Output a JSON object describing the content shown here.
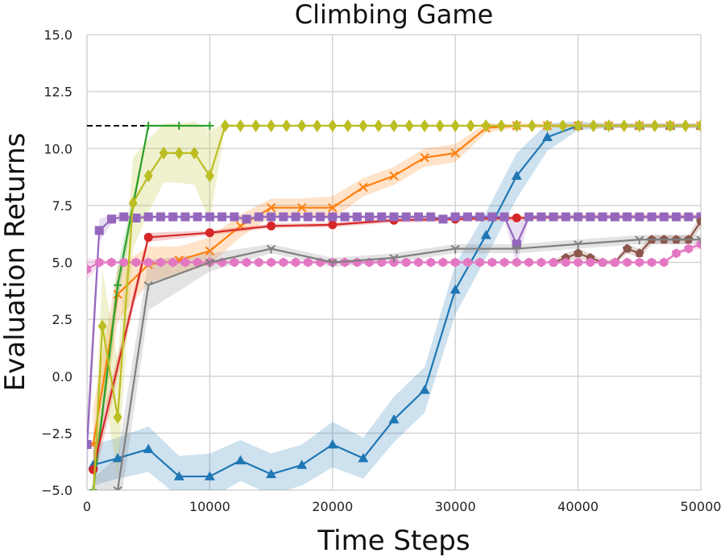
{
  "chart_data": {
    "type": "line",
    "title": "Climbing Game",
    "xlabel": "Time Steps",
    "ylabel": "Evaluation Returns",
    "xlim": [
      0,
      50000
    ],
    "ylim": [
      -5.0,
      15.0
    ],
    "x_ticks": [
      0,
      10000,
      20000,
      30000,
      40000,
      50000
    ],
    "x_tick_labels": [
      "0",
      "10000",
      "20000",
      "30000",
      "40000",
      "50000"
    ],
    "y_ticks": [
      -5.0,
      -2.5,
      0.0,
      2.5,
      5.0,
      7.5,
      10.0,
      12.5,
      15.0
    ],
    "y_tick_labels": [
      "−5.0",
      "−2.5",
      "0.0",
      "2.5",
      "5.0",
      "7.5",
      "10.0",
      "12.5",
      "15.0"
    ],
    "grid": true,
    "legend": "none",
    "reference_line": {
      "y": 11,
      "x_range": [
        0,
        5000
      ],
      "style": "dashed",
      "color": "#000000"
    },
    "series": [
      {
        "color": "#1f77b4",
        "marker": "triangle",
        "x": [
          500,
          2500,
          5000,
          7500,
          10000,
          12500,
          15000,
          17500,
          20000,
          22500,
          25000,
          27500,
          30000,
          32500,
          35000,
          37500,
          40000,
          42500,
          45000,
          47500,
          50000
        ],
        "y": [
          -3.9,
          -3.6,
          -3.2,
          -4.4,
          -4.4,
          -3.7,
          -4.3,
          -3.9,
          -3.0,
          -3.6,
          -1.9,
          -0.6,
          3.8,
          6.2,
          8.8,
          10.5,
          11.0,
          11.0,
          11.0,
          11.0,
          11.0
        ],
        "band": [
          0.9,
          0.9,
          1.0,
          0.9,
          1.0,
          0.9,
          0.9,
          0.9,
          1.0,
          0.9,
          1.0,
          1.0,
          1.1,
          1.0,
          1.0,
          0.6,
          0.2,
          0.1,
          0.1,
          0.1,
          0.1
        ]
      },
      {
        "color": "#ff7f0e",
        "marker": "x",
        "x": [
          500,
          2500,
          5000,
          7500,
          10000,
          12500,
          15000,
          17500,
          20000,
          22500,
          25000,
          27500,
          30000,
          32500,
          35000,
          37500,
          40000,
          42500,
          45000,
          47500,
          50000
        ],
        "y": [
          -3.0,
          3.6,
          4.9,
          5.1,
          5.5,
          6.6,
          7.4,
          7.4,
          7.4,
          8.3,
          8.8,
          9.6,
          9.8,
          10.9,
          11.0,
          11.0,
          11.0,
          11.0,
          11.0,
          11.0,
          11.0
        ],
        "band": [
          1.6,
          1.2,
          0.8,
          0.6,
          0.6,
          0.5,
          0.4,
          0.4,
          0.5,
          0.4,
          0.4,
          0.4,
          0.4,
          0.2,
          0.1,
          0.1,
          0.1,
          0.1,
          0.1,
          0.1,
          0.1
        ]
      },
      {
        "color": "#2ca02c",
        "marker": "plus",
        "x": [
          500,
          2500,
          5000,
          7500,
          10000
        ],
        "y": [
          -5.0,
          4.0,
          11.0,
          11.0,
          11.0
        ],
        "band": [
          0.5,
          0.8,
          0.0,
          0.0,
          0.0
        ]
      },
      {
        "color": "#d62728",
        "marker": "circle",
        "x": [
          500,
          5000,
          10000,
          15000,
          20000,
          25000,
          30000,
          35000,
          40000,
          45000,
          50000
        ],
        "y": [
          -4.1,
          6.1,
          6.3,
          6.6,
          6.65,
          6.85,
          6.9,
          6.95,
          7.0,
          7.0,
          7.0
        ],
        "band": [
          0.7,
          0.2,
          0.1,
          0.1,
          0.1,
          0.1,
          0.1,
          0.1,
          0.1,
          0.1,
          0.1
        ]
      },
      {
        "color": "#9467bd",
        "marker": "square",
        "x": [
          0,
          1000,
          2000,
          3000,
          4000,
          5000,
          6000,
          7000,
          8000,
          9000,
          10000,
          11000,
          12000,
          13000,
          14000,
          15000,
          16000,
          17000,
          18000,
          19000,
          20000,
          21000,
          22000,
          23000,
          24000,
          25000,
          26000,
          27000,
          28000,
          29000,
          30000,
          31000,
          32000,
          33000,
          34000,
          35000,
          36000,
          37000,
          38000,
          39000,
          40000,
          41000,
          42000,
          43000,
          44000,
          45000,
          46000,
          47000,
          48000,
          49000,
          50000
        ],
        "y": [
          -3.0,
          6.4,
          6.9,
          7.0,
          6.95,
          7.0,
          7.0,
          7.0,
          7.0,
          7.0,
          7.0,
          7.0,
          7.0,
          6.9,
          7.0,
          7.0,
          7.0,
          7.0,
          7.0,
          7.0,
          7.0,
          7.0,
          7.0,
          7.0,
          7.0,
          7.0,
          7.0,
          7.0,
          7.0,
          6.9,
          7.0,
          7.0,
          7.0,
          7.0,
          7.0,
          5.8,
          7.0,
          7.0,
          7.0,
          7.0,
          7.0,
          7.0,
          7.0,
          7.0,
          7.0,
          7.0,
          7.0,
          7.0,
          7.0,
          7.0,
          7.0
        ],
        "band": [
          1.5,
          0.5,
          0.2,
          0.1,
          0.1,
          0.1,
          0.1,
          0.1,
          0.1,
          0.1,
          0.1,
          0.1,
          0.1,
          0.1,
          0.1,
          0.1,
          0.1,
          0.1,
          0.1,
          0.1,
          0.1,
          0.1,
          0.1,
          0.1,
          0.1,
          0.1,
          0.1,
          0.1,
          0.1,
          0.1,
          0.1,
          0.1,
          0.1,
          0.1,
          0.1,
          0.9,
          0.1,
          0.1,
          0.1,
          0.1,
          0.1,
          0.1,
          0.1,
          0.1,
          0.1,
          0.1,
          0.1,
          0.1,
          0.1,
          0.1,
          0.1
        ]
      },
      {
        "color": "#8c564b",
        "marker": "pentagon",
        "x": [
          38000,
          39000,
          40000,
          41000,
          42000,
          43000,
          44000,
          45000,
          46000,
          47000,
          48000,
          49000,
          50000
        ],
        "y": [
          5.0,
          5.2,
          5.4,
          5.2,
          5.0,
          5.0,
          5.6,
          5.4,
          6.0,
          6.0,
          6.0,
          6.0,
          6.8
        ],
        "band": [
          0.1,
          0.2,
          0.2,
          0.2,
          0.1,
          0.1,
          0.2,
          0.2,
          0.2,
          0.2,
          0.2,
          0.2,
          0.3
        ]
      },
      {
        "color": "#e377c2",
        "marker": "hexagon",
        "x": [
          0,
          1000,
          2000,
          3000,
          4000,
          5000,
          6000,
          7000,
          8000,
          9000,
          10000,
          11000,
          12000,
          13000,
          14000,
          15000,
          16000,
          17000,
          18000,
          19000,
          20000,
          21000,
          22000,
          23000,
          24000,
          25000,
          26000,
          27000,
          28000,
          29000,
          30000,
          31000,
          32000,
          33000,
          34000,
          35000,
          36000,
          37000,
          38000,
          39000,
          40000,
          41000,
          42000,
          43000,
          44000,
          45000,
          46000,
          47000,
          48000,
          49000,
          50000
        ],
        "y": [
          4.7,
          5.0,
          5.0,
          5.0,
          5.0,
          5.0,
          5.0,
          5.0,
          5.0,
          5.0,
          5.0,
          5.0,
          5.0,
          5.0,
          5.0,
          5.0,
          5.0,
          5.0,
          5.0,
          5.0,
          5.0,
          5.0,
          5.0,
          5.0,
          5.0,
          5.0,
          5.0,
          5.0,
          5.0,
          5.0,
          5.0,
          5.0,
          5.0,
          5.0,
          5.0,
          5.0,
          5.0,
          5.0,
          5.0,
          5.0,
          5.0,
          5.0,
          5.0,
          5.0,
          5.0,
          5.0,
          5.0,
          5.0,
          5.4,
          5.6,
          5.8
        ],
        "band": [
          0.5,
          0.1,
          0.05,
          0.05,
          0.05,
          0.05,
          0.05,
          0.05,
          0.05,
          0.05,
          0.05,
          0.05,
          0.05,
          0.05,
          0.05,
          0.05,
          0.05,
          0.05,
          0.05,
          0.05,
          0.05,
          0.05,
          0.05,
          0.05,
          0.05,
          0.05,
          0.05,
          0.05,
          0.05,
          0.05,
          0.05,
          0.05,
          0.05,
          0.05,
          0.05,
          0.05,
          0.05,
          0.05,
          0.05,
          0.05,
          0.05,
          0.05,
          0.05,
          0.05,
          0.05,
          0.05,
          0.05,
          0.05,
          0.1,
          0.1,
          0.2
        ]
      },
      {
        "color": "#7f7f7f",
        "marker": "tri_down",
        "x": [
          500,
          2500,
          5000,
          10000,
          15000,
          20000,
          25000,
          30000,
          35000,
          40000,
          45000,
          50000
        ],
        "y": [
          -6.0,
          -5.0,
          4.0,
          5.0,
          5.6,
          5.0,
          5.2,
          5.6,
          5.6,
          5.8,
          6.0,
          6.0
        ],
        "band": [
          1.5,
          1.5,
          1.1,
          0.4,
          0.2,
          0.2,
          0.2,
          0.2,
          0.2,
          0.2,
          0.2,
          0.2
        ]
      },
      {
        "color": "#bcbd22",
        "marker": "diamond",
        "x": [
          500,
          1250,
          2500,
          3750,
          5000,
          6250,
          7500,
          8750,
          10000,
          11250,
          12500,
          13750,
          15000,
          16250,
          17500,
          18750,
          20000,
          21250,
          22500,
          23750,
          25000,
          26250,
          27500,
          28750,
          30000,
          31250,
          32500,
          33750,
          35000,
          36250,
          37500,
          38750,
          40000,
          41250,
          42500,
          43750,
          45000,
          46250,
          47500,
          48750,
          50000
        ],
        "y": [
          -5.5,
          2.2,
          -1.8,
          7.6,
          8.8,
          9.8,
          9.8,
          9.8,
          8.8,
          11.0,
          11.0,
          11.0,
          11.0,
          11.0,
          11.0,
          11.0,
          11.0,
          11.0,
          11.0,
          11.0,
          11.0,
          11.0,
          11.0,
          11.0,
          11.0,
          11.0,
          11.0,
          11.0,
          11.0,
          11.0,
          11.0,
          11.0,
          11.0,
          11.0,
          11.0,
          11.0,
          11.0,
          11.0,
          11.0,
          11.0,
          11.0
        ],
        "band": [
          1.0,
          2.5,
          2.5,
          2.0,
          1.6,
          1.3,
          1.3,
          1.4,
          2.0,
          0.1,
          0.0,
          0.0,
          0.0,
          0.0,
          0.0,
          0.0,
          0.0,
          0.0,
          0.0,
          0.0,
          0.0,
          0.0,
          0.0,
          0.0,
          0.0,
          0.0,
          0.0,
          0.0,
          0.0,
          0.0,
          0.0,
          0.0,
          0.0,
          0.0,
          0.0,
          0.0,
          0.0,
          0.0,
          0.0,
          0.0,
          0.0
        ]
      }
    ]
  }
}
